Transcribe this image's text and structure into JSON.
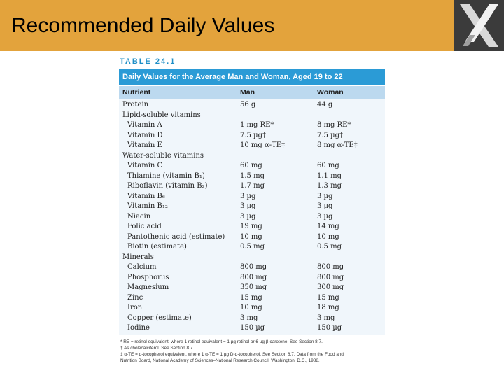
{
  "slide": {
    "title": "Recommended Daily Values"
  },
  "table": {
    "label": "TABLE 24.1",
    "caption": "Daily Values for the Average Man and Woman, Aged 19 to 22",
    "columns": [
      "Nutrient",
      "Man",
      "Woman"
    ],
    "rows": [
      {
        "nutrient": "Protein",
        "man": "56 g",
        "woman": "44 g",
        "indent": false
      },
      {
        "nutrient": "Lipid-soluble vitamins",
        "man": "",
        "woman": "",
        "indent": false
      },
      {
        "nutrient": "Vitamin A",
        "man": "1 mg RE*",
        "woman": "8 mg RE*",
        "indent": true
      },
      {
        "nutrient": "Vitamin D",
        "man": "7.5 µg†",
        "woman": "7.5 µg†",
        "indent": true
      },
      {
        "nutrient": "Vitamin E",
        "man": "10 mg α-TE‡",
        "woman": "8 mg α-TE‡",
        "indent": true
      },
      {
        "nutrient": "Water-soluble vitamins",
        "man": "",
        "woman": "",
        "indent": false
      },
      {
        "nutrient": "Vitamin C",
        "man": "60 mg",
        "woman": "60 mg",
        "indent": true
      },
      {
        "nutrient": "Thiamine (vitamin B₁)",
        "man": "1.5 mg",
        "woman": "1.1 mg",
        "indent": true
      },
      {
        "nutrient": "Riboflavin (vitamin B₂)",
        "man": "1.7 mg",
        "woman": "1.3 mg",
        "indent": true
      },
      {
        "nutrient": "Vitamin B₆",
        "man": "3 µg",
        "woman": "3 µg",
        "indent": true
      },
      {
        "nutrient": "Vitamin B₁₂",
        "man": "3 µg",
        "woman": "3 µg",
        "indent": true
      },
      {
        "nutrient": "Niacin",
        "man": "3 µg",
        "woman": "3 µg",
        "indent": true
      },
      {
        "nutrient": "Folic acid",
        "man": "19 mg",
        "woman": "14 mg",
        "indent": true
      },
      {
        "nutrient": "Pantothenic acid (estimate)",
        "man": "10 mg",
        "woman": "10 mg",
        "indent": true
      },
      {
        "nutrient": "Biotin (estimate)",
        "man": "0.5 mg",
        "woman": "0.5 mg",
        "indent": true
      },
      {
        "nutrient": "Minerals",
        "man": "",
        "woman": "",
        "indent": false
      },
      {
        "nutrient": "Calcium",
        "man": "800 mg",
        "woman": "800 mg",
        "indent": true
      },
      {
        "nutrient": "Phosphorus",
        "man": "800 mg",
        "woman": "800 mg",
        "indent": true
      },
      {
        "nutrient": "Magnesium",
        "man": "350 mg",
        "woman": "300 mg",
        "indent": true
      },
      {
        "nutrient": "Zinc",
        "man": "15 mg",
        "woman": "15 mg",
        "indent": true
      },
      {
        "nutrient": "Iron",
        "man": "10 mg",
        "woman": "18 mg",
        "indent": true
      },
      {
        "nutrient": "Copper (estimate)",
        "man": "3 mg",
        "woman": "3 mg",
        "indent": true
      },
      {
        "nutrient": "Iodine",
        "man": "150 µg",
        "woman": "150 µg",
        "indent": true
      }
    ],
    "footnotes": [
      "* RE = retinol equivalent, where 1 retinol equivalent = 1 µg retinol or 6 µg β-carotene. See Section 8.7.",
      "† As cholecalciferol. See Section 8.7.",
      "‡ α-TE = α-tocopherol equivalent, where 1 α-TE = 1 µg D-α-tocopherol. See Section 8.7. Data from the Food and",
      "Nutrition Board, National Academy of Sciences–National Research Council, Washington, D.C., 1988."
    ]
  },
  "colors": {
    "header": "#e3a33c",
    "caption": "#2b9bd6",
    "column_header": "#bcd9ef",
    "body": "#f0f6fb"
  },
  "icons": {
    "logo": "x-logo-icon"
  }
}
